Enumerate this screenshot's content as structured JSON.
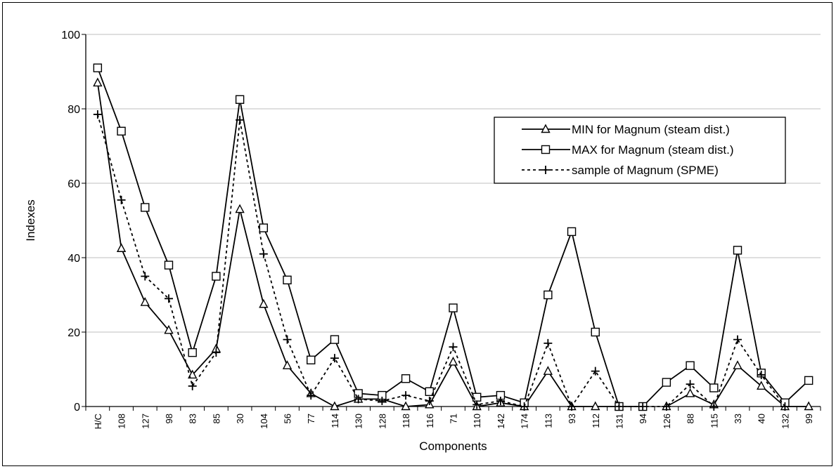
{
  "chart_data": {
    "type": "line",
    "xlabel": "Components",
    "ylabel": "Indexes",
    "ylim": [
      0,
      100
    ],
    "yticks": [
      "0",
      "20",
      "40",
      "60",
      "80",
      "100"
    ],
    "grid": "horizontal",
    "legend_position": "right",
    "categories": [
      "H/C",
      "108",
      "127",
      "98",
      "83",
      "85",
      "30",
      "104",
      "56",
      "77",
      "114",
      "130",
      "128",
      "118",
      "116",
      "71",
      "110",
      "142",
      "174",
      "113",
      "93",
      "112",
      "131",
      "94",
      "126",
      "88",
      "115",
      "33",
      "40",
      "132",
      "99"
    ],
    "series": [
      {
        "name": "MIN for Magnum (steam dist.)",
        "marker": "triangle",
        "line": "solid",
        "values": [
          87,
          42.5,
          28,
          20.5,
          8.5,
          15.5,
          53,
          27.5,
          11,
          3.5,
          0,
          2,
          2,
          0,
          0.5,
          12,
          0,
          1,
          0,
          9.5,
          0,
          0,
          0,
          null,
          0,
          3.5,
          0.5,
          11,
          5.5,
          0,
          0
        ]
      },
      {
        "name": "MAX for Magnum (steam dist.)",
        "marker": "square",
        "line": "solid",
        "values": [
          91,
          74,
          53.5,
          38,
          14.5,
          35,
          82.5,
          48,
          34,
          12.5,
          18,
          3.5,
          3,
          7.5,
          4,
          26.5,
          2.5,
          3,
          1,
          30,
          47,
          20,
          0,
          0,
          6.5,
          11,
          5,
          42,
          9,
          1,
          7
        ]
      },
      {
        "name": "sample of Magnum (SPME)",
        "marker": "plus",
        "line": "dashed",
        "values": [
          78.5,
          55.5,
          35,
          29,
          5.5,
          14.5,
          77,
          41,
          18,
          3,
          13,
          2,
          1.5,
          3,
          1.5,
          16,
          0.5,
          1.5,
          0,
          17,
          0,
          9.5,
          0,
          0,
          0,
          6,
          0,
          18,
          8.5,
          0,
          null
        ]
      }
    ]
  },
  "colors": {
    "line": "#000000",
    "grid": "#bfbfbf",
    "background": "#ffffff"
  }
}
